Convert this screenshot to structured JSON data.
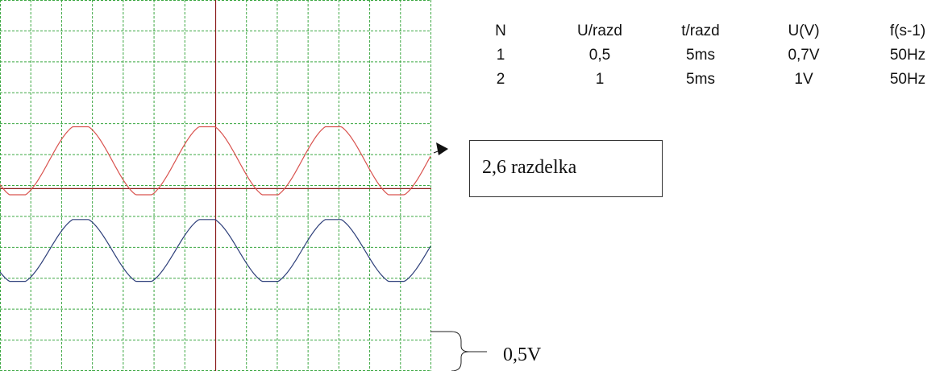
{
  "table": {
    "headers": [
      "N",
      "U/razd",
      "t/razd",
      "U(V)",
      "f(s-1)"
    ],
    "rows": [
      [
        "1",
        "0,5",
        "5ms",
        "0,7V",
        "50Hz"
      ],
      [
        "2",
        "1",
        "5ms",
        "1V",
        "50Hz"
      ]
    ]
  },
  "callout": {
    "label": "2,6 razdelka"
  },
  "scale_note": {
    "label": "0,5V"
  },
  "colors": {
    "grid": "#3aa640",
    "axis": "#8b1a1a",
    "trace_red": "#d9534f",
    "trace_blue": "#2e3f7a",
    "ink": "#111111"
  },
  "oscilloscope": {
    "divisions_x": 14,
    "divisions_y": 12,
    "traces": [
      {
        "name": "1",
        "color_key": "trace_red",
        "center_div": 5.2,
        "amplitude_div": 2.2,
        "offset_div": -0.7,
        "period_div": 4.1,
        "phase_deg": 220
      },
      {
        "name": "2",
        "color_key": "trace_blue",
        "center_div": 8.1,
        "amplitude_div": 2.0,
        "offset_div": 0,
        "period_div": 4.1,
        "phase_deg": 220
      }
    ]
  }
}
